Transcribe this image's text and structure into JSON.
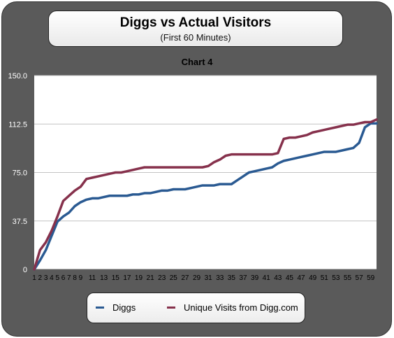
{
  "header": {
    "title": "Diggs vs Actual Visitors",
    "subtitle": "(First 60 Minutes)"
  },
  "chart_data": {
    "type": "line",
    "title": "Chart 4",
    "xlabel": "",
    "ylabel": "",
    "ylim": [
      0,
      150
    ],
    "yticks": [
      "0",
      "37.5",
      "75.0",
      "112.5",
      "150.0"
    ],
    "grid": true,
    "legend_position": "bottom",
    "x": [
      1,
      2,
      3,
      4,
      5,
      6,
      7,
      8,
      9,
      10,
      11,
      12,
      13,
      14,
      15,
      16,
      17,
      18,
      19,
      20,
      21,
      22,
      23,
      24,
      25,
      26,
      27,
      28,
      29,
      30,
      31,
      32,
      33,
      34,
      35,
      36,
      37,
      38,
      39,
      40,
      41,
      42,
      43,
      44,
      45,
      46,
      47,
      48,
      49,
      50,
      51,
      52,
      53,
      54,
      55,
      56,
      57,
      58,
      59,
      60
    ],
    "x_tick_labels": [
      "1",
      "2",
      "3",
      "4",
      "5",
      "6",
      "7",
      "8",
      "9",
      "11",
      "13",
      "15",
      "17",
      "19",
      "21",
      "23",
      "25",
      "27",
      "29",
      "31",
      "33",
      "35",
      "37",
      "39",
      "41",
      "43",
      "45",
      "47",
      "49",
      "51",
      "53",
      "55",
      "57",
      "59"
    ],
    "series": [
      {
        "name": "Diggs",
        "color": "#2a5a92",
        "values": [
          0,
          7,
          15,
          26,
          37,
          41,
          44,
          49,
          52,
          54,
          55,
          55,
          56,
          57,
          57,
          57,
          57,
          58,
          58,
          59,
          59,
          60,
          61,
          61,
          62,
          62,
          62,
          63,
          64,
          65,
          65,
          65,
          66,
          66,
          66,
          69,
          72,
          75,
          76,
          77,
          78,
          79,
          82,
          84,
          85,
          86,
          87,
          88,
          89,
          90,
          91,
          91,
          91,
          92,
          93,
          94,
          98,
          110,
          113,
          113
        ]
      },
      {
        "name": "Unique Visits from Digg.com",
        "color": "#86314c",
        "values": [
          0,
          15,
          21,
          30,
          41,
          53,
          57,
          61,
          64,
          70,
          71,
          72,
          73,
          74,
          75,
          75,
          76,
          77,
          78,
          79,
          79,
          79,
          79,
          79,
          79,
          79,
          79,
          79,
          79,
          79,
          80,
          83,
          85,
          88,
          89,
          89,
          89,
          89,
          89,
          89,
          89,
          89,
          90,
          101,
          102,
          102,
          103,
          104,
          106,
          107,
          108,
          109,
          110,
          111,
          112,
          112,
          113,
          114,
          114,
          116
        ]
      }
    ]
  }
}
